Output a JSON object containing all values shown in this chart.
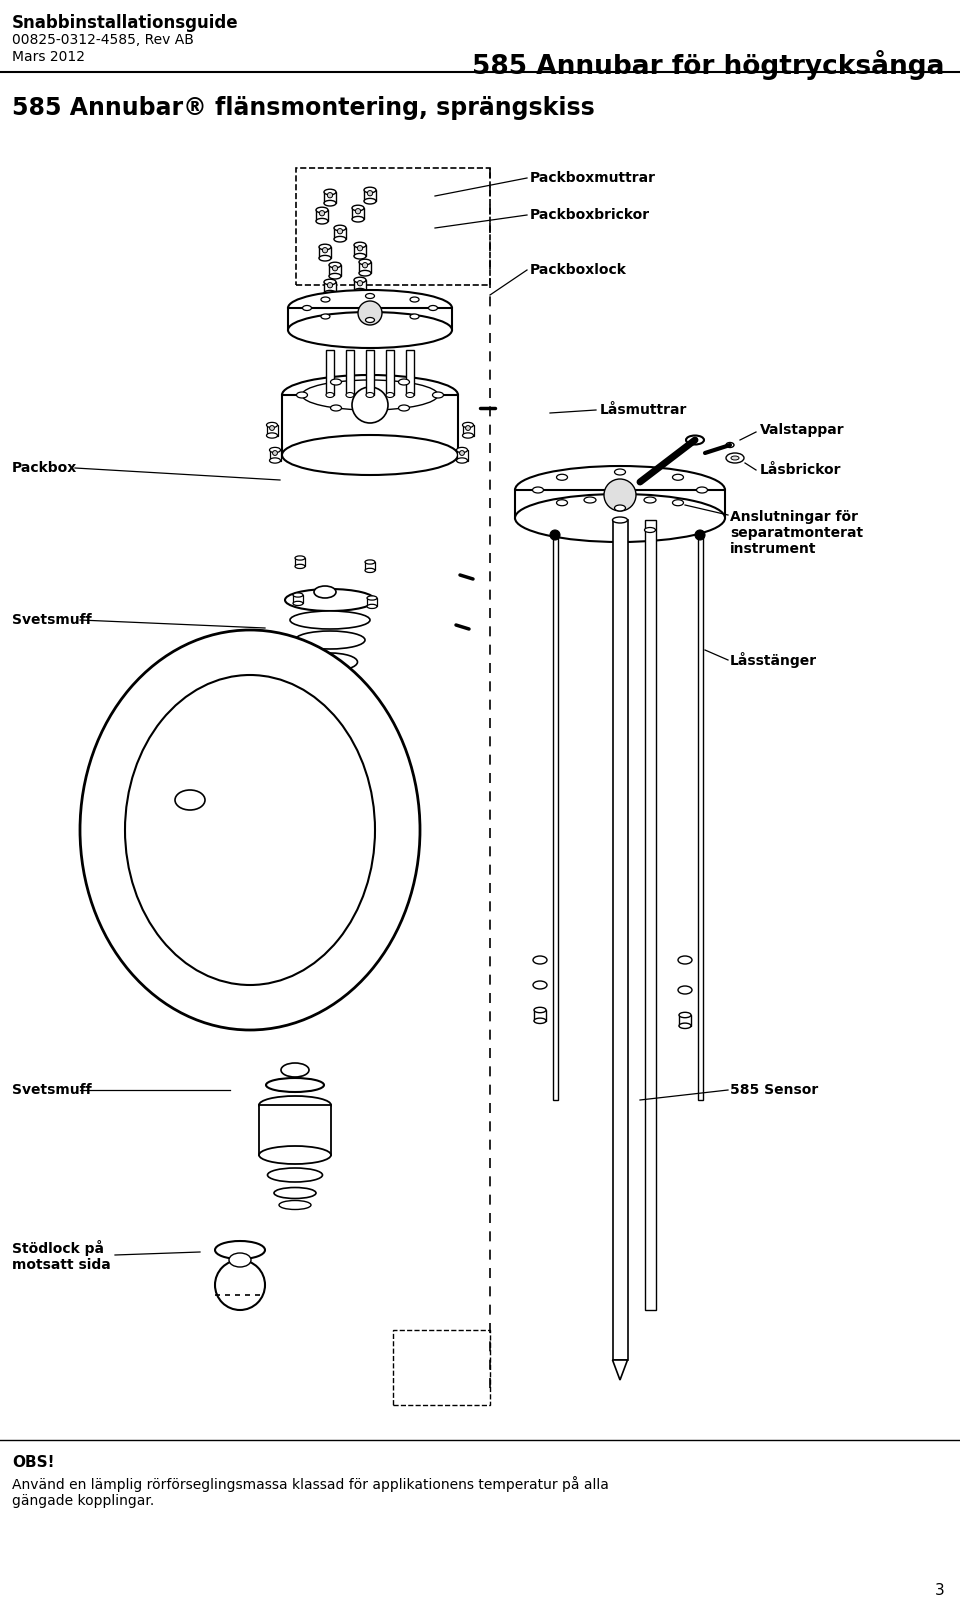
{
  "header_line1": "Snabbinstallationsguide",
  "header_line2": "00825-0312-4585, Rev AB",
  "header_line3": "Mars 2012",
  "header_right": "585 Annubar för högtrycksånga",
  "section_title": "585 Annubar",
  "section_title_reg": "®",
  "section_title2": " flänsmontering, sprängskiss",
  "labels": {
    "packboxmuttrar": "Packboxmuttrar",
    "packboxbrickor": "Packboxbrickor",
    "packboxlock": "Packboxlock",
    "lasmuttrar": "Låsmuttrar",
    "valstappar": "Valstappar",
    "packbox": "Packbox",
    "lasbrickor": "Låsbrickor",
    "anslutningar": "Anslutningar för\nseparatmonterat\ninstrument",
    "svetsmuff1": "Svetsmuff",
    "lasstanger": "Låsstänger",
    "svetsmuff2": "Svetsmuff",
    "sensor585": "585 Sensor",
    "stodlock": "Stödlock på\nmotsatt sida"
  },
  "obs_text": "OBS!",
  "obs_body": "Använd en lämplig rörförseglingsmassa klassad för applikationens temperatur på alla\ngängade kopplingar.",
  "page_number": "3",
  "bg_color": "#ffffff",
  "text_color": "#000000"
}
